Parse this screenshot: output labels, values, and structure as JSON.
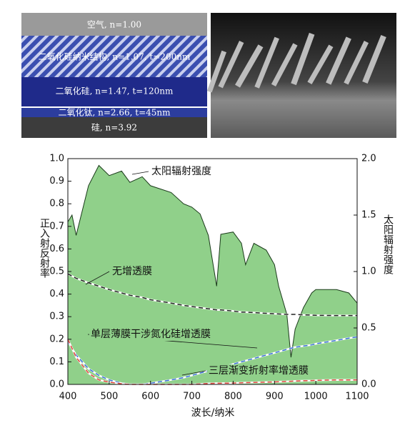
{
  "diagram": {
    "layers": [
      {
        "label": "空气, n=1.00"
      },
      {
        "label": "二氧化硅纳米结构, n=1.07, t=200nm"
      },
      {
        "label": "二氧化硅, n=1.47, t=120nm"
      },
      {
        "label": "二氧化钛, n=2.66, t=45nm"
      },
      {
        "label": "硅, n=3.92"
      }
    ]
  },
  "chart_data": {
    "type": "line",
    "x_label": "波长/纳米",
    "y_label": "正入射反射率",
    "y2_label": "太阳辐射强度",
    "x": [
      400,
      410,
      420,
      450,
      475,
      500,
      530,
      550,
      580,
      600,
      650,
      680,
      700,
      720,
      740,
      760,
      770,
      800,
      820,
      830,
      850,
      880,
      900,
      910,
      930,
      940,
      950,
      970,
      990,
      1000,
      1050,
      1080,
      1100
    ],
    "xlim": [
      400,
      1100
    ],
    "xticks": [
      400,
      500,
      600,
      700,
      800,
      900,
      1000,
      1100
    ],
    "ylim": [
      0,
      1
    ],
    "yticks": [
      {
        "value": 0,
        "label": "0.0"
      },
      {
        "value": 0.1,
        "label": "0.1"
      },
      {
        "value": 0.2,
        "label": "0.2"
      },
      {
        "value": 0.3,
        "label": "0.3"
      },
      {
        "value": 0.4,
        "label": "0.4"
      },
      {
        "value": 0.5,
        "label": "0.5"
      },
      {
        "value": 0.6,
        "label": "0.6"
      },
      {
        "value": 0.7,
        "label": "0.7"
      },
      {
        "value": 0.8,
        "label": "0.8"
      },
      {
        "value": 0.9,
        "label": "0.9"
      },
      {
        "value": 1,
        "label": "1.0"
      }
    ],
    "y2lim": [
      0,
      2
    ],
    "y2ticks": [
      {
        "value": 0,
        "label": "0.0"
      },
      {
        "value": 0.5,
        "label": "0.5"
      },
      {
        "value": 1,
        "label": "1.0"
      },
      {
        "value": 1.5,
        "label": "1.5"
      },
      {
        "value": 2,
        "label": "2.0"
      }
    ],
    "series": [
      {
        "name": "太阳辐射强度",
        "color": "#90d08a",
        "style": "area",
        "axis": "y2",
        "values": [
          1.44,
          1.5,
          1.32,
          1.76,
          1.94,
          1.85,
          1.89,
          1.79,
          1.84,
          1.76,
          1.7,
          1.6,
          1.57,
          1.51,
          1.32,
          0.87,
          1.33,
          1.35,
          1.25,
          1.06,
          1.25,
          1.19,
          1.06,
          0.87,
          0.62,
          0.24,
          0.49,
          0.68,
          0.81,
          0.84,
          0.84,
          0.81,
          0.72
        ]
      },
      {
        "name": "无增透膜",
        "color": "#222222",
        "style": "dashed",
        "values": [
          0.49,
          0.48,
          0.47,
          0.45,
          0.435,
          0.42,
          0.405,
          0.395,
          0.385,
          0.375,
          0.36,
          0.35,
          0.345,
          0.34,
          0.335,
          0.33,
          0.33,
          0.325,
          0.32,
          0.32,
          0.318,
          0.315,
          0.313,
          0.312,
          0.31,
          0.31,
          0.31,
          0.308,
          0.307,
          0.306,
          0.305,
          0.305,
          0.305
        ]
      },
      {
        "name": "单层薄膜干涉氮化硅增透膜",
        "color": "#3a6fd8",
        "style": "dashed",
        "values": [
          0.19,
          0.16,
          0.13,
          0.07,
          0.04,
          0.02,
          0.005,
          0,
          0,
          0.005,
          0.02,
          0.03,
          0.04,
          0.05,
          0.06,
          0.07,
          0.075,
          0.09,
          0.1,
          0.105,
          0.115,
          0.13,
          0.14,
          0.145,
          0.155,
          0.16,
          0.165,
          0.17,
          0.175,
          0.18,
          0.195,
          0.205,
          0.21
        ]
      },
      {
        "name": "三层渐变折射率增透膜",
        "color": "#e0443c",
        "style": "dashed",
        "values": [
          0.2,
          0.16,
          0.12,
          0.05,
          0.02,
          0.01,
          0.003,
          0,
          0,
          0,
          0,
          0,
          0,
          0.002,
          0.004,
          0.005,
          0.005,
          0.006,
          0.007,
          0.008,
          0.009,
          0.01,
          0.011,
          0.012,
          0.013,
          0.014,
          0.015,
          0.016,
          0.017,
          0.018,
          0.02,
          0.02,
          0.02
        ]
      }
    ]
  }
}
